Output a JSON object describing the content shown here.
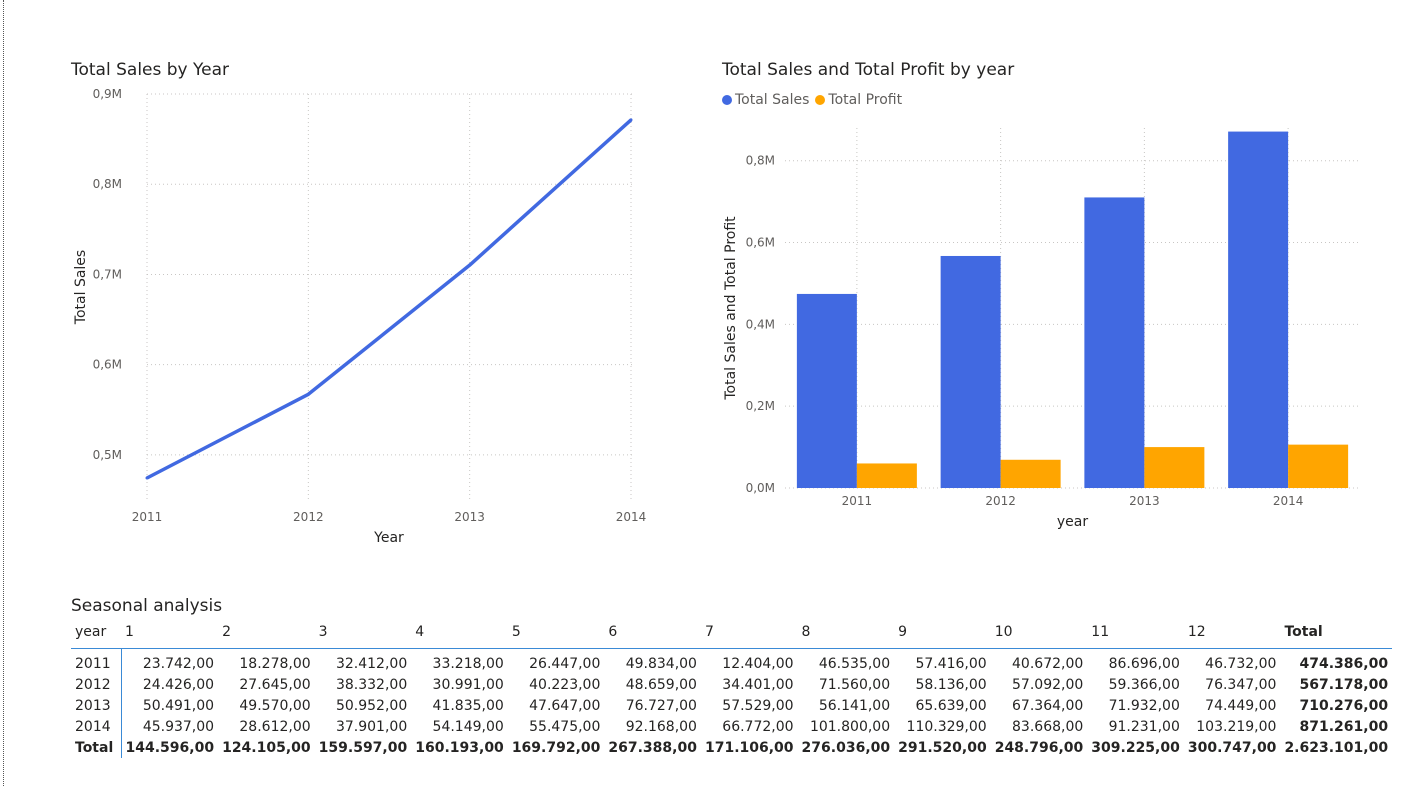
{
  "colors": {
    "sales": "#4169e1",
    "profit": "#ffa500",
    "gridline": "#c8c6c4",
    "table_accent": "#3a8ad6"
  },
  "chart_data": [
    {
      "type": "line",
      "title": "Total Sales by Year",
      "xlabel": "Year",
      "ylabel": "Total Sales",
      "categories": [
        "2011",
        "2012",
        "2013",
        "2014"
      ],
      "values": [
        474386.0,
        567178.0,
        710276.0,
        871261.0
      ],
      "ylim": [
        0.45,
        0.9
      ],
      "yticks": [
        "0,5M",
        "0,6M",
        "0,7M",
        "0,8M",
        "0,9M"
      ],
      "grid": true
    },
    {
      "type": "bar",
      "title": "Total Sales and Total Profit by year",
      "xlabel": "year",
      "ylabel": "Total Sales and Total Profit",
      "categories": [
        "2011",
        "2012",
        "2013",
        "2014"
      ],
      "series": [
        {
          "name": "Total Sales",
          "values": [
            474386.0,
            567178.0,
            710276.0,
            871261.0
          ]
        },
        {
          "name": "Total Profit",
          "values": [
            60000,
            69000,
            100000,
            106000
          ]
        }
      ],
      "ylim": [
        0,
        0.88
      ],
      "yticks": [
        "0,0M",
        "0,2M",
        "0,4M",
        "0,6M",
        "0,8M"
      ],
      "legend": "top-left",
      "grid": true
    }
  ],
  "table": {
    "title": "Seasonal analysis",
    "headers": [
      "year",
      "1",
      "2",
      "3",
      "4",
      "5",
      "6",
      "7",
      "8",
      "9",
      "10",
      "11",
      "12",
      "Total"
    ],
    "rows": [
      [
        "2011",
        "23.742,00",
        "18.278,00",
        "32.412,00",
        "33.218,00",
        "26.447,00",
        "49.834,00",
        "12.404,00",
        "46.535,00",
        "57.416,00",
        "40.672,00",
        "86.696,00",
        "46.732,00",
        "474.386,00"
      ],
      [
        "2012",
        "24.426,00",
        "27.645,00",
        "38.332,00",
        "30.991,00",
        "40.223,00",
        "48.659,00",
        "34.401,00",
        "71.560,00",
        "58.136,00",
        "57.092,00",
        "59.366,00",
        "76.347,00",
        "567.178,00"
      ],
      [
        "2013",
        "50.491,00",
        "49.570,00",
        "50.952,00",
        "41.835,00",
        "47.647,00",
        "76.727,00",
        "57.529,00",
        "56.141,00",
        "65.639,00",
        "67.364,00",
        "71.932,00",
        "74.449,00",
        "710.276,00"
      ],
      [
        "2014",
        "45.937,00",
        "28.612,00",
        "37.901,00",
        "54.149,00",
        "55.475,00",
        "92.168,00",
        "66.772,00",
        "101.800,00",
        "110.329,00",
        "83.668,00",
        "91.231,00",
        "103.219,00",
        "871.261,00"
      ]
    ],
    "total_row": [
      "Total",
      "144.596,00",
      "124.105,00",
      "159.597,00",
      "160.193,00",
      "169.792,00",
      "267.388,00",
      "171.106,00",
      "276.036,00",
      "291.520,00",
      "248.796,00",
      "309.225,00",
      "300.747,00",
      "2.623.101,00"
    ]
  }
}
